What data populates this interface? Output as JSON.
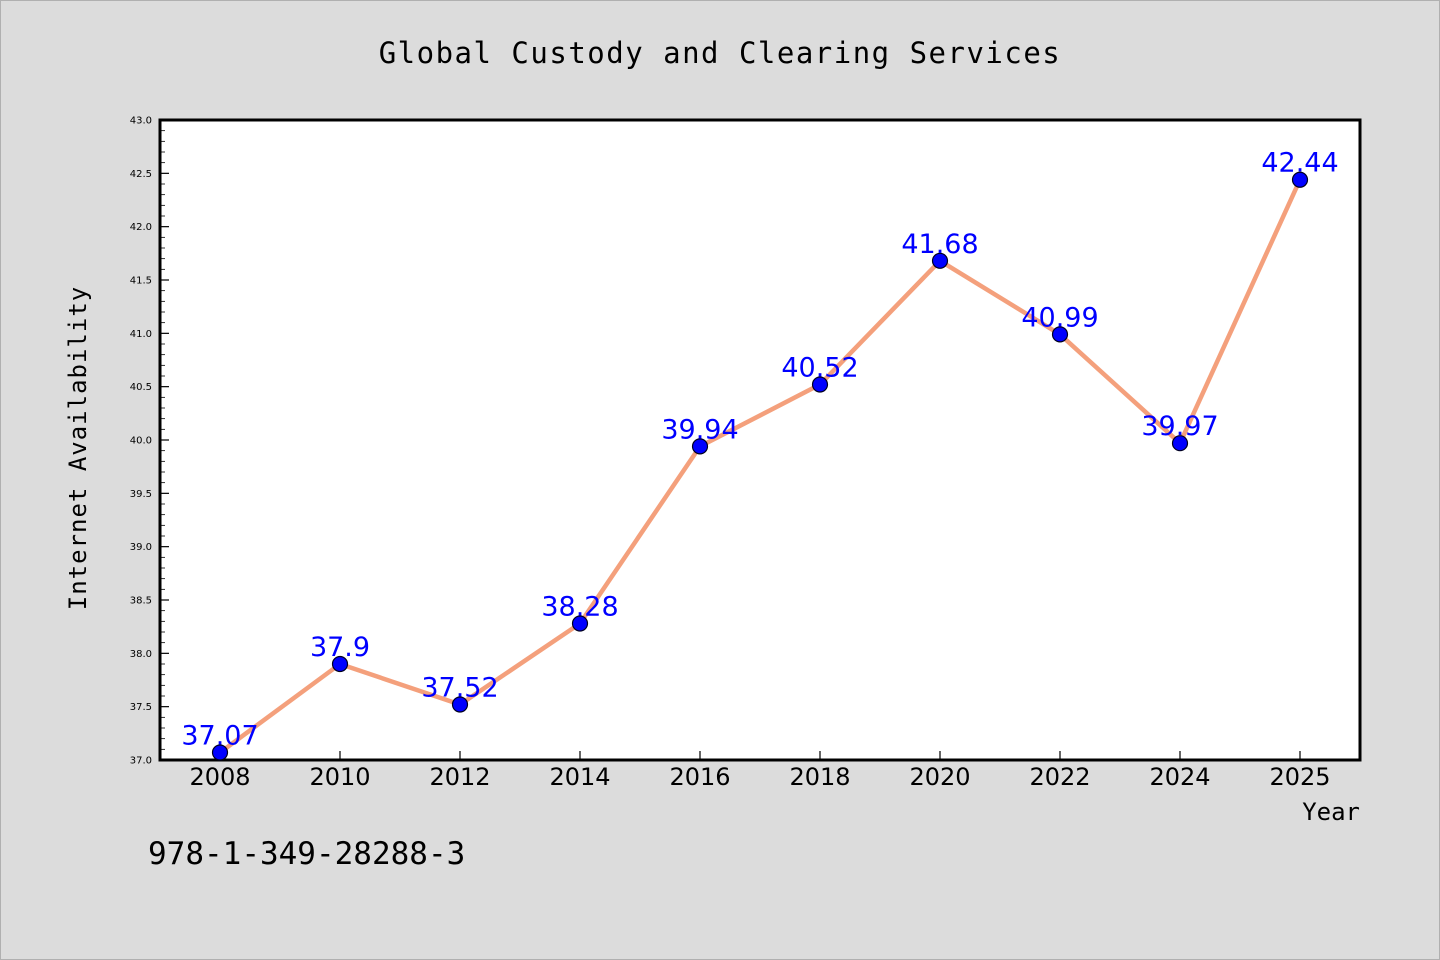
{
  "chart_data": {
    "type": "line",
    "title": "Global Custody and Clearing Services",
    "xlabel": "Year",
    "ylabel": "Internet Availability",
    "x": [
      "2008",
      "2010",
      "2012",
      "2014",
      "2016",
      "2018",
      "2020",
      "2022",
      "2024",
      "2025"
    ],
    "series": [
      {
        "values": [
          37.07,
          37.9,
          37.52,
          38.28,
          39.94,
          40.52,
          41.68,
          40.99,
          39.97,
          42.44
        ],
        "data_labels": [
          "37.07",
          "37.9",
          "37.52",
          "38.28",
          "39.94",
          "40.52",
          "41.68",
          "40.99",
          "39.97",
          "42.44"
        ],
        "line_color": "#f4a07c",
        "marker_color": "#0000ff"
      }
    ],
    "ylim": [
      37.0,
      43.0
    ],
    "yticks": [
      "37.0",
      "37.5",
      "38.0",
      "38.5",
      "39.0",
      "39.5",
      "40.0",
      "40.5",
      "41.0",
      "41.5",
      "42.0",
      "42.5",
      "43.0"
    ],
    "grid": false,
    "label_color": "#0000ff",
    "background_color": "#dcdcdc",
    "plot_background": "#ffffff"
  },
  "annotation": "978-1-349-28288-3"
}
